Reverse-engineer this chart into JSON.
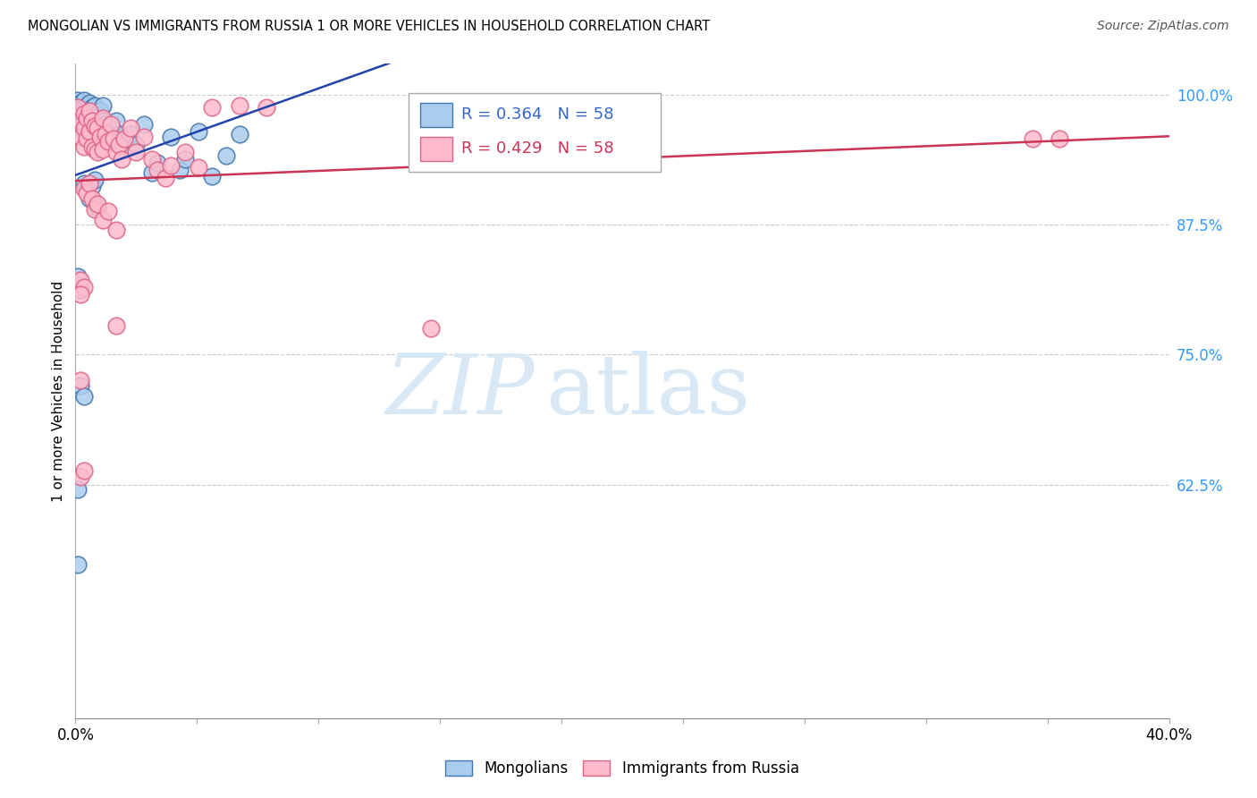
{
  "title": "MONGOLIAN VS IMMIGRANTS FROM RUSSIA 1 OR MORE VEHICLES IN HOUSEHOLD CORRELATION CHART",
  "source": "Source: ZipAtlas.com",
  "ylabel": "1 or more Vehicles in Household",
  "legend_labels": [
    "Mongolians",
    "Immigrants from Russia"
  ],
  "r_mongolian": 0.364,
  "n_mongolian": 58,
  "r_russia": 0.429,
  "n_russia": 58,
  "xmin": 0.0,
  "xmax": 0.4,
  "ymin": 0.4,
  "ymax": 1.03,
  "yticks": [
    0.625,
    0.75,
    0.875,
    1.0
  ],
  "ytick_labels": [
    "62.5%",
    "75.0%",
    "87.5%",
    "100.0%"
  ],
  "blue_scatter_face": "#AACCEE",
  "blue_scatter_edge": "#4477AA",
  "pink_scatter_face": "#FFBBCC",
  "pink_scatter_edge": "#DD6688",
  "trend_blue": "#2244AA",
  "trend_pink": "#CC3355",
  "watermark_color": "#D8E8F5",
  "mongolian_x": [
    0.001,
    0.002,
    0.002,
    0.002,
    0.003,
    0.003,
    0.003,
    0.003,
    0.004,
    0.004,
    0.004,
    0.005,
    0.005,
    0.005,
    0.006,
    0.006,
    0.006,
    0.007,
    0.007,
    0.007,
    0.008,
    0.008,
    0.009,
    0.009,
    0.01,
    0.01,
    0.011,
    0.012,
    0.013,
    0.014,
    0.015,
    0.016,
    0.017,
    0.018,
    0.02,
    0.022,
    0.025,
    0.028,
    0.03,
    0.035,
    0.038,
    0.04,
    0.045,
    0.05,
    0.055,
    0.06,
    0.003,
    0.004,
    0.005,
    0.006,
    0.007,
    0.008,
    0.001,
    0.002,
    0.002,
    0.003,
    0.001,
    0.001
  ],
  "mongolian_y": [
    0.995,
    0.992,
    0.985,
    0.972,
    0.995,
    0.988,
    0.978,
    0.965,
    0.99,
    0.98,
    0.968,
    0.992,
    0.982,
    0.97,
    0.988,
    0.975,
    0.962,
    0.99,
    0.978,
    0.965,
    0.982,
    0.97,
    0.985,
    0.972,
    0.99,
    0.975,
    0.972,
    0.958,
    0.968,
    0.96,
    0.975,
    0.962,
    0.955,
    0.948,
    0.962,
    0.952,
    0.972,
    0.925,
    0.935,
    0.96,
    0.928,
    0.938,
    0.965,
    0.922,
    0.942,
    0.962,
    0.915,
    0.908,
    0.9,
    0.912,
    0.918,
    0.892,
    0.825,
    0.812,
    0.72,
    0.71,
    0.62,
    0.548
  ],
  "russia_x": [
    0.001,
    0.002,
    0.002,
    0.003,
    0.003,
    0.003,
    0.004,
    0.004,
    0.005,
    0.005,
    0.006,
    0.006,
    0.007,
    0.007,
    0.008,
    0.008,
    0.009,
    0.01,
    0.01,
    0.011,
    0.012,
    0.013,
    0.014,
    0.015,
    0.016,
    0.017,
    0.018,
    0.02,
    0.022,
    0.025,
    0.028,
    0.03,
    0.033,
    0.035,
    0.04,
    0.045,
    0.05,
    0.06,
    0.07,
    0.003,
    0.004,
    0.005,
    0.006,
    0.007,
    0.008,
    0.01,
    0.012,
    0.015,
    0.002,
    0.003,
    0.002,
    0.002,
    0.003,
    0.13,
    0.36,
    0.35,
    0.002,
    0.015
  ],
  "russia_y": [
    0.988,
    0.975,
    0.96,
    0.982,
    0.968,
    0.95,
    0.978,
    0.958,
    0.985,
    0.965,
    0.975,
    0.95,
    0.97,
    0.948,
    0.968,
    0.945,
    0.96,
    0.978,
    0.948,
    0.962,
    0.955,
    0.972,
    0.958,
    0.945,
    0.952,
    0.938,
    0.958,
    0.968,
    0.945,
    0.96,
    0.938,
    0.928,
    0.92,
    0.932,
    0.945,
    0.93,
    0.988,
    0.99,
    0.988,
    0.91,
    0.905,
    0.915,
    0.9,
    0.89,
    0.895,
    0.88,
    0.888,
    0.87,
    0.822,
    0.815,
    0.725,
    0.632,
    0.638,
    0.775,
    0.958,
    0.958,
    0.808,
    0.778
  ]
}
